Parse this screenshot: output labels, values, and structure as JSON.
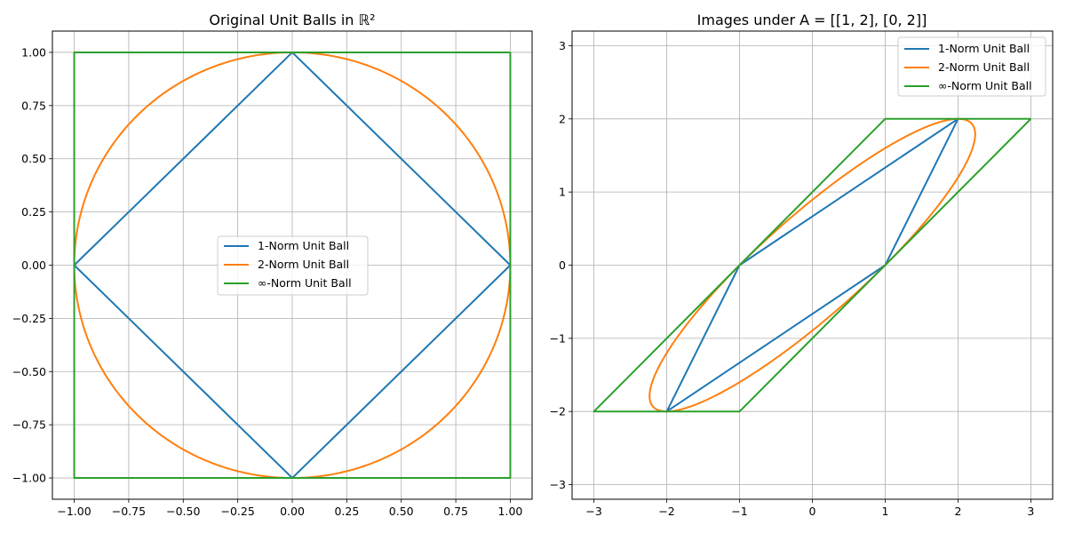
{
  "colors": {
    "one_norm": "#1f77b4",
    "two_norm": "#ff7f0e",
    "inf_norm": "#2ca02c",
    "grid": "#b0b0b0",
    "axes": "#000000"
  },
  "chart_data": [
    {
      "type": "line",
      "title": "Original Unit Balls in ℝ²",
      "xlabel": "",
      "ylabel": "",
      "xlim": [
        -1.1,
        1.1
      ],
      "ylim": [
        -1.1,
        1.1
      ],
      "xticks": [
        -1.0,
        -0.75,
        -0.5,
        -0.25,
        0.0,
        0.25,
        0.5,
        0.75,
        1.0
      ],
      "xtick_labels": [
        "−1.00",
        "−0.75",
        "−0.50",
        "−0.25",
        "0.00",
        "0.25",
        "0.50",
        "0.75",
        "1.00"
      ],
      "yticks": [
        -1.0,
        -0.75,
        -0.5,
        -0.25,
        0.0,
        0.25,
        0.5,
        0.75,
        1.0
      ],
      "ytick_labels": [
        "−1.00",
        "−0.75",
        "−0.50",
        "−0.25",
        "0.00",
        "0.25",
        "0.50",
        "0.75",
        "1.00"
      ],
      "grid": true,
      "legend_position": "center",
      "series": [
        {
          "name": "1-Norm Unit Ball",
          "color_key": "one_norm",
          "kind": "polygon",
          "points": [
            [
              1,
              0
            ],
            [
              0,
              1
            ],
            [
              -1,
              0
            ],
            [
              0,
              -1
            ],
            [
              1,
              0
            ]
          ]
        },
        {
          "name": "2-Norm Unit Ball",
          "color_key": "two_norm",
          "kind": "ellipse",
          "matrix": [
            [
              1,
              0
            ],
            [
              0,
              1
            ]
          ]
        },
        {
          "name": "∞-Norm Unit Ball",
          "color_key": "inf_norm",
          "kind": "polygon",
          "points": [
            [
              1,
              1
            ],
            [
              -1,
              1
            ],
            [
              -1,
              -1
            ],
            [
              1,
              -1
            ],
            [
              1,
              1
            ]
          ]
        }
      ]
    },
    {
      "type": "line",
      "title": "Images under A = [[1, 2], [0, 2]]",
      "xlabel": "",
      "ylabel": "",
      "xlim": [
        -3.3,
        3.3
      ],
      "ylim": [
        -3.2,
        3.2
      ],
      "xticks": [
        -3,
        -2,
        -1,
        0,
        1,
        2,
        3
      ],
      "xtick_labels": [
        "−3",
        "−2",
        "−1",
        "0",
        "1",
        "2",
        "3"
      ],
      "yticks": [
        -3,
        -2,
        -1,
        0,
        1,
        2,
        3
      ],
      "ytick_labels": [
        "−3",
        "−2",
        "−1",
        "0",
        "1",
        "2",
        "3"
      ],
      "grid": true,
      "legend_position": "upper right",
      "series": [
        {
          "name": "1-Norm Unit Ball",
          "color_key": "one_norm",
          "kind": "polygon",
          "points": [
            [
              1,
              0
            ],
            [
              2,
              2
            ],
            [
              -1,
              0
            ],
            [
              -2,
              -2
            ],
            [
              1,
              0
            ]
          ]
        },
        {
          "name": "2-Norm Unit Ball",
          "color_key": "two_norm",
          "kind": "ellipse",
          "matrix": [
            [
              1,
              2
            ],
            [
              0,
              2
            ]
          ]
        },
        {
          "name": "∞-Norm Unit Ball",
          "color_key": "inf_norm",
          "kind": "polygon",
          "points": [
            [
              3,
              2
            ],
            [
              1,
              2
            ],
            [
              -3,
              -2
            ],
            [
              -1,
              -2
            ],
            [
              3,
              2
            ]
          ]
        }
      ]
    }
  ]
}
